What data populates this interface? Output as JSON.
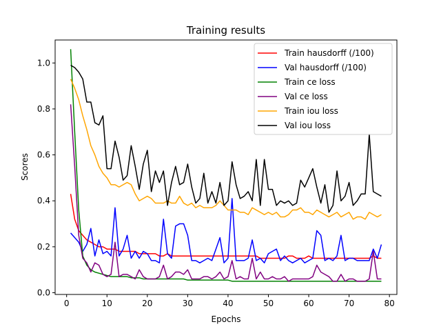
{
  "chart_data": {
    "type": "line",
    "title": "Training results",
    "xlabel": "Epochs",
    "ylabel": "Scores",
    "xlim": [
      -2.85,
      81.85
    ],
    "ylim": [
      -0.0075,
      1.1
    ],
    "xticks": [
      0,
      10,
      20,
      30,
      40,
      50,
      60,
      70,
      80
    ],
    "yticks": [
      0.0,
      0.2,
      0.4,
      0.6,
      0.8,
      1.0
    ],
    "ytick_labels": [
      "0.0",
      "0.2",
      "0.4",
      "0.6",
      "0.8",
      "1.0"
    ],
    "grid": false,
    "legend_position": "top-right",
    "x": [
      1,
      2,
      3,
      4,
      5,
      6,
      7,
      8,
      9,
      10,
      11,
      12,
      13,
      14,
      15,
      16,
      17,
      18,
      19,
      20,
      21,
      22,
      23,
      24,
      25,
      26,
      27,
      28,
      29,
      30,
      31,
      32,
      33,
      34,
      35,
      36,
      37,
      38,
      39,
      40,
      41,
      42,
      43,
      44,
      45,
      46,
      47,
      48,
      49,
      50,
      51,
      52,
      53,
      54,
      55,
      56,
      57,
      58,
      59,
      60,
      61,
      62,
      63,
      64,
      65,
      66,
      67,
      68,
      69,
      70,
      71,
      72,
      73,
      74,
      75,
      76,
      77,
      78
    ],
    "series": [
      {
        "name": "Train hausdorff (/100)",
        "color": "#ff0000",
        "values": [
          0.43,
          0.32,
          0.27,
          0.25,
          0.23,
          0.22,
          0.21,
          0.2,
          0.2,
          0.19,
          0.19,
          0.19,
          0.18,
          0.18,
          0.18,
          0.18,
          0.18,
          0.17,
          0.17,
          0.17,
          0.17,
          0.17,
          0.16,
          0.16,
          0.17,
          0.16,
          0.16,
          0.16,
          0.16,
          0.16,
          0.16,
          0.16,
          0.16,
          0.16,
          0.16,
          0.16,
          0.16,
          0.16,
          0.16,
          0.16,
          0.16,
          0.16,
          0.16,
          0.16,
          0.16,
          0.16,
          0.16,
          0.15,
          0.15,
          0.15,
          0.15,
          0.15,
          0.15,
          0.15,
          0.16,
          0.16,
          0.15,
          0.15,
          0.15,
          0.16,
          0.15,
          0.15,
          0.15,
          0.15,
          0.15,
          0.15,
          0.15,
          0.15,
          0.15,
          0.15,
          0.15,
          0.15,
          0.15,
          0.15,
          0.15,
          0.16,
          0.15,
          0.15
        ]
      },
      {
        "name": "Val hausdorff (/100)",
        "color": "#0000ff",
        "values": [
          0.26,
          0.24,
          0.22,
          0.18,
          0.21,
          0.28,
          0.16,
          0.23,
          0.17,
          0.18,
          0.16,
          0.37,
          0.16,
          0.19,
          0.25,
          0.15,
          0.18,
          0.15,
          0.18,
          0.17,
          0.14,
          0.14,
          0.13,
          0.32,
          0.17,
          0.15,
          0.29,
          0.3,
          0.3,
          0.25,
          0.14,
          0.14,
          0.13,
          0.14,
          0.15,
          0.14,
          0.19,
          0.24,
          0.13,
          0.15,
          0.41,
          0.14,
          0.14,
          0.14,
          0.15,
          0.23,
          0.14,
          0.15,
          0.13,
          0.17,
          0.18,
          0.19,
          0.14,
          0.16,
          0.14,
          0.13,
          0.14,
          0.15,
          0.13,
          0.14,
          0.15,
          0.27,
          0.25,
          0.14,
          0.15,
          0.14,
          0.16,
          0.25,
          0.14,
          0.15,
          0.15,
          0.14,
          0.14,
          0.14,
          0.14,
          0.19,
          0.15,
          0.21
        ]
      },
      {
        "name": "Train ce loss",
        "color": "#008000",
        "values": [
          1.06,
          0.7,
          0.36,
          0.16,
          0.12,
          0.1,
          0.09,
          0.085,
          0.08,
          0.075,
          0.07,
          0.07,
          0.07,
          0.07,
          0.07,
          0.065,
          0.065,
          0.065,
          0.06,
          0.06,
          0.06,
          0.06,
          0.06,
          0.06,
          0.06,
          0.06,
          0.06,
          0.06,
          0.06,
          0.055,
          0.055,
          0.055,
          0.055,
          0.055,
          0.055,
          0.055,
          0.055,
          0.055,
          0.055,
          0.055,
          0.05,
          0.05,
          0.05,
          0.05,
          0.05,
          0.05,
          0.05,
          0.05,
          0.05,
          0.05,
          0.05,
          0.05,
          0.05,
          0.05,
          0.05,
          0.05,
          0.05,
          0.05,
          0.05,
          0.05,
          0.05,
          0.05,
          0.05,
          0.05,
          0.05,
          0.05,
          0.05,
          0.05,
          0.05,
          0.05,
          0.05,
          0.05,
          0.05,
          0.05,
          0.05,
          0.05,
          0.05,
          0.05
        ]
      },
      {
        "name": "Val ce loss",
        "color": "#800080",
        "values": [
          0.82,
          0.55,
          0.25,
          0.15,
          0.13,
          0.09,
          0.13,
          0.12,
          0.08,
          0.07,
          0.08,
          0.22,
          0.07,
          0.08,
          0.08,
          0.07,
          0.06,
          0.1,
          0.07,
          0.06,
          0.06,
          0.06,
          0.07,
          0.12,
          0.06,
          0.07,
          0.09,
          0.09,
          0.08,
          0.1,
          0.06,
          0.06,
          0.06,
          0.07,
          0.07,
          0.06,
          0.07,
          0.09,
          0.06,
          0.07,
          0.14,
          0.06,
          0.07,
          0.06,
          0.06,
          0.15,
          0.06,
          0.09,
          0.06,
          0.06,
          0.07,
          0.06,
          0.06,
          0.07,
          0.05,
          0.06,
          0.06,
          0.06,
          0.06,
          0.06,
          0.07,
          0.12,
          0.09,
          0.08,
          0.07,
          0.05,
          0.05,
          0.08,
          0.05,
          0.06,
          0.06,
          0.05,
          0.05,
          0.05,
          0.06,
          0.18,
          0.06,
          0.06
        ]
      },
      {
        "name": "Train iou loss",
        "color": "#ffa500",
        "values": [
          0.93,
          0.89,
          0.84,
          0.77,
          0.71,
          0.64,
          0.6,
          0.55,
          0.52,
          0.5,
          0.47,
          0.47,
          0.46,
          0.47,
          0.48,
          0.47,
          0.43,
          0.4,
          0.41,
          0.42,
          0.41,
          0.39,
          0.39,
          0.39,
          0.4,
          0.39,
          0.39,
          0.42,
          0.39,
          0.38,
          0.39,
          0.37,
          0.38,
          0.37,
          0.37,
          0.37,
          0.38,
          0.4,
          0.38,
          0.36,
          0.36,
          0.36,
          0.35,
          0.35,
          0.34,
          0.37,
          0.36,
          0.35,
          0.34,
          0.35,
          0.34,
          0.35,
          0.33,
          0.33,
          0.34,
          0.36,
          0.36,
          0.37,
          0.35,
          0.35,
          0.34,
          0.36,
          0.35,
          0.34,
          0.33,
          0.34,
          0.35,
          0.33,
          0.34,
          0.35,
          0.32,
          0.33,
          0.33,
          0.32,
          0.35,
          0.34,
          0.33,
          0.34
        ]
      },
      {
        "name": "Val iou loss",
        "color": "#000000",
        "values": [
          0.99,
          0.98,
          0.96,
          0.93,
          0.83,
          0.83,
          0.74,
          0.73,
          0.77,
          0.54,
          0.54,
          0.66,
          0.59,
          0.49,
          0.51,
          0.64,
          0.55,
          0.45,
          0.56,
          0.62,
          0.44,
          0.53,
          0.48,
          0.53,
          0.38,
          0.48,
          0.55,
          0.47,
          0.48,
          0.56,
          0.46,
          0.39,
          0.41,
          0.52,
          0.39,
          0.44,
          0.39,
          0.48,
          0.38,
          0.4,
          0.57,
          0.47,
          0.41,
          0.42,
          0.44,
          0.4,
          0.58,
          0.38,
          0.58,
          0.45,
          0.45,
          0.38,
          0.4,
          0.39,
          0.4,
          0.38,
          0.39,
          0.49,
          0.46,
          0.5,
          0.54,
          0.46,
          0.39,
          0.47,
          0.35,
          0.38,
          0.53,
          0.4,
          0.42,
          0.48,
          0.38,
          0.4,
          0.43,
          0.43,
          0.69,
          0.44,
          0.43,
          0.42
        ]
      }
    ]
  }
}
